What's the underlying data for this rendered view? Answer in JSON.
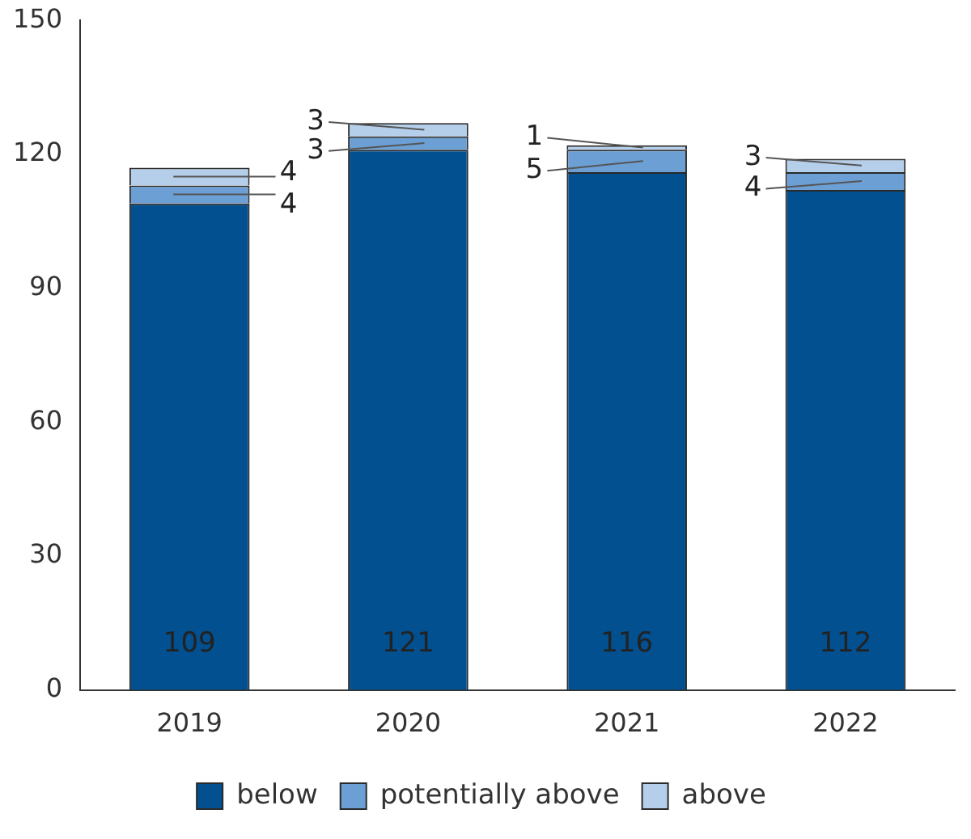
{
  "chart_data": {
    "type": "bar",
    "stacked": true,
    "categories": [
      "2019",
      "2020",
      "2021",
      "2022"
    ],
    "series": [
      {
        "name": "below",
        "color": "#02508f",
        "values": [
          109,
          121,
          116,
          112
        ]
      },
      {
        "name": "potentially above",
        "color": "#6c9fd4",
        "values": [
          4,
          3,
          5,
          4
        ]
      },
      {
        "name": "above",
        "color": "#b5cfeb",
        "values": [
          4,
          3,
          1,
          3
        ]
      }
    ],
    "ylim": [
      0,
      150
    ],
    "yticks": [
      0,
      30,
      60,
      90,
      120,
      150
    ],
    "grid": false,
    "legend": "bottom",
    "data_labels": true
  }
}
